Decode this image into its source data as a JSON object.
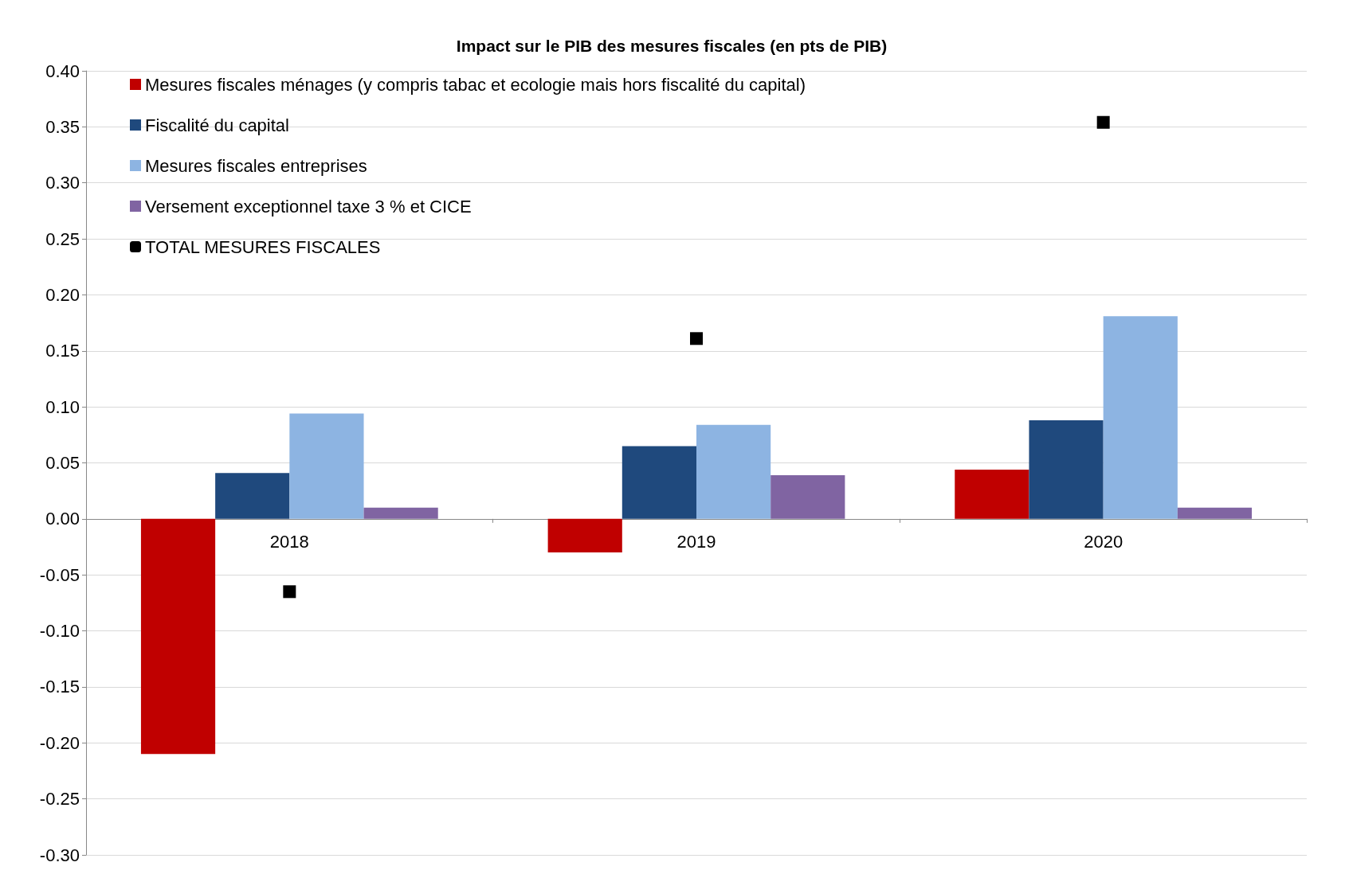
{
  "chart_data": {
    "type": "bar",
    "title": "Impact sur le PIB des mesures fiscales (en pts de PIB)",
    "categories": [
      "2018",
      "2019",
      "2020"
    ],
    "series": [
      {
        "name": "Mesures fiscales ménages (y compris tabac et ecologie mais hors fiscalité du capital)",
        "color": "#c00000",
        "values": [
          -0.21,
          -0.03,
          0.044
        ]
      },
      {
        "name": "Fiscalité du capital",
        "color": "#1f497d",
        "values": [
          0.041,
          0.065,
          0.088
        ]
      },
      {
        "name": "Mesures fiscales entreprises",
        "color": "#8db4e2",
        "values": [
          0.094,
          0.084,
          0.181
        ]
      },
      {
        "name": "Versement exceptionnel taxe 3 % et CICE",
        "color": "#8064a2",
        "values": [
          0.01,
          0.039,
          0.01
        ]
      },
      {
        "name": "TOTAL MESURES FISCALES",
        "color": "#000000",
        "type": "scatter",
        "marker": "square",
        "values": [
          -0.065,
          0.161,
          0.354
        ]
      }
    ],
    "ylim": [
      -0.3,
      0.4
    ],
    "yticks": [
      {
        "value": -0.3,
        "label": "-0.30"
      },
      {
        "value": -0.25,
        "label": "-0.25"
      },
      {
        "value": -0.2,
        "label": "-0.20"
      },
      {
        "value": -0.15,
        "label": "-0.15"
      },
      {
        "value": -0.1,
        "label": "-0.10"
      },
      {
        "value": -0.05,
        "label": "-0.05"
      },
      {
        "value": 0,
        "label": "0.00"
      },
      {
        "value": 0.05,
        "label": "0.05"
      },
      {
        "value": 0.1,
        "label": "0.10"
      },
      {
        "value": 0.15,
        "label": "0.15"
      },
      {
        "value": 0.2,
        "label": "0.20"
      },
      {
        "value": 0.25,
        "label": "0.25"
      },
      {
        "value": 0.3,
        "label": "0.30"
      },
      {
        "value": 0.35,
        "label": "0.35"
      },
      {
        "value": 0.4,
        "label": "0.40"
      }
    ],
    "grid": "y",
    "legend": "top left"
  }
}
